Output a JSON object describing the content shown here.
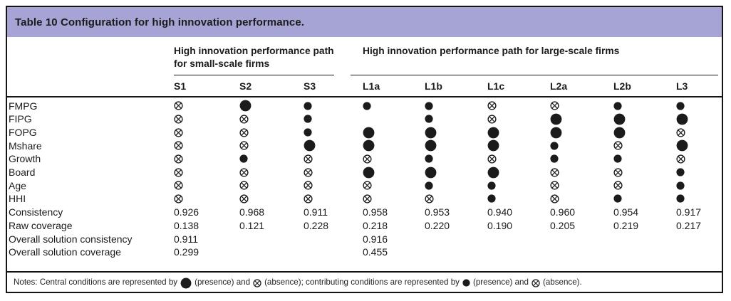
{
  "title": "Table 10 Configuration for high innovation performance.",
  "column_groups": [
    {
      "id": "small-scale",
      "label": "High innovation performance path for small-scale firms",
      "span": 3
    },
    {
      "id": "large-scale",
      "label": "High innovation performance path for large-scale firms",
      "span": 6
    }
  ],
  "columns": [
    "S1",
    "S2",
    "S3",
    "L1a",
    "L1b",
    "L1c",
    "L2a",
    "L2b",
    "L3"
  ],
  "symbol_meanings": {
    "CP": "central-condition-presence (large filled circle)",
    "CA": "central-condition-absence (large crossed circle)",
    "P": "contributing-condition-presence (small filled circle)",
    "A": "contributing-condition-absence (small crossed circle)"
  },
  "rows": [
    {
      "label": "FMPG",
      "cells": [
        "A",
        "CP",
        "P",
        "P",
        "P",
        "A",
        "A",
        "P",
        "P"
      ]
    },
    {
      "label": "FIPG",
      "cells": [
        "A",
        "A",
        "P",
        "",
        "P",
        "A",
        "CP",
        "CP",
        "CP"
      ]
    },
    {
      "label": "FOPG",
      "cells": [
        "A",
        "A",
        "P",
        "CP",
        "CP",
        "CP",
        "CP",
        "CP",
        "A"
      ]
    },
    {
      "label": "Mshare",
      "cells": [
        "A",
        "A",
        "CP",
        "CP",
        "CP",
        "CP",
        "P",
        "A",
        "CP"
      ]
    },
    {
      "label": "Growth",
      "cells": [
        "A",
        "P",
        "A",
        "A",
        "P",
        "A",
        "P",
        "P",
        "A"
      ]
    },
    {
      "label": "Board",
      "cells": [
        "A",
        "A",
        "A",
        "CP",
        "CP",
        "CP",
        "A",
        "A",
        "P"
      ]
    },
    {
      "label": "Age",
      "cells": [
        "A",
        "A",
        "A",
        "A",
        "P",
        "P",
        "A",
        "A",
        "P"
      ]
    },
    {
      "label": "HHI",
      "cells": [
        "A",
        "A",
        "A",
        "A",
        "A",
        "P",
        "A",
        "P",
        "P"
      ]
    },
    {
      "label": "Consistency",
      "cells": [
        "0.926",
        "0.968",
        "0.911",
        "0.958",
        "0.953",
        "0.940",
        "0.960",
        "0.954",
        "0.917"
      ]
    },
    {
      "label": "Raw coverage",
      "cells": [
        "0.138",
        "0.121",
        "0.228",
        "0.218",
        "0.220",
        "0.190",
        "0.205",
        "0.219",
        "0.217"
      ]
    },
    {
      "label": "Overall solution consistency",
      "cells": [
        "0.911",
        "",
        "",
        "0.916",
        "",
        "",
        "",
        "",
        ""
      ]
    },
    {
      "label": "Overall solution coverage",
      "cells": [
        "0.299",
        "",
        "",
        "0.455",
        "",
        "",
        "",
        "",
        ""
      ]
    }
  ],
  "notes_segments": [
    {
      "text": "Notes: Central conditions are represented by"
    },
    {
      "symbol": "CP"
    },
    {
      "text": "(presence) and"
    },
    {
      "symbol": "CA"
    },
    {
      "text": "(absence); contributing conditions are represented by"
    },
    {
      "symbol": "P"
    },
    {
      "text": "(presence) and"
    },
    {
      "symbol": "A"
    },
    {
      "text": "(absence)."
    }
  ],
  "colors": {
    "title_bar_bg": "#a6a4d5",
    "text": "#1b1b1b",
    "symbol": "#1b1b1b",
    "rule": "#141414"
  }
}
